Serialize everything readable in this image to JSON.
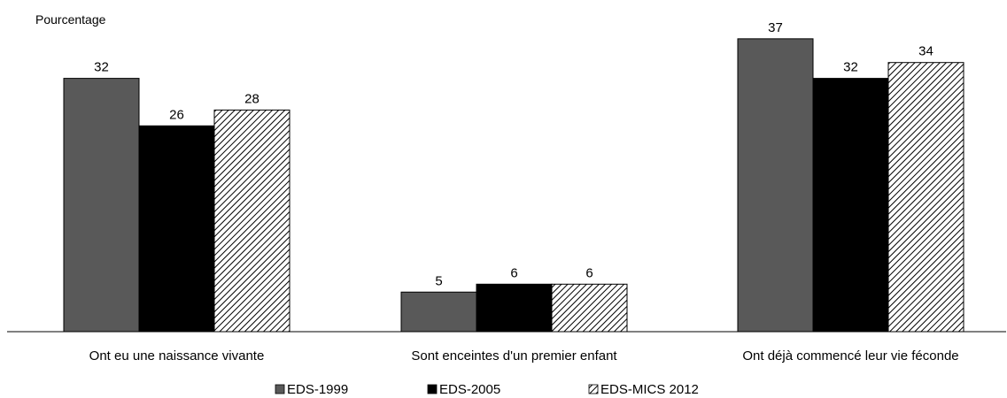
{
  "chart_data": {
    "type": "bar",
    "ylabel": "Pourcentage",
    "categories": [
      "Ont eu une naissance vivante",
      "Sont enceintes d'un premier enfant",
      "Ont déjà commencé leur vie féconde"
    ],
    "series": [
      {
        "name": "EDS-1999",
        "values": [
          32,
          5,
          37
        ],
        "color": "#595959",
        "pattern": "solid"
      },
      {
        "name": "EDS-2005",
        "values": [
          26,
          6,
          32
        ],
        "color": "#000000",
        "pattern": "solid"
      },
      {
        "name": "EDS-MICS 2012",
        "values": [
          28,
          6,
          34
        ],
        "color": "#000000",
        "pattern": "diagonal-hatch"
      }
    ],
    "data_labels": true,
    "grid": false,
    "legend_position": "bottom",
    "ylim": [
      0,
      40
    ]
  }
}
